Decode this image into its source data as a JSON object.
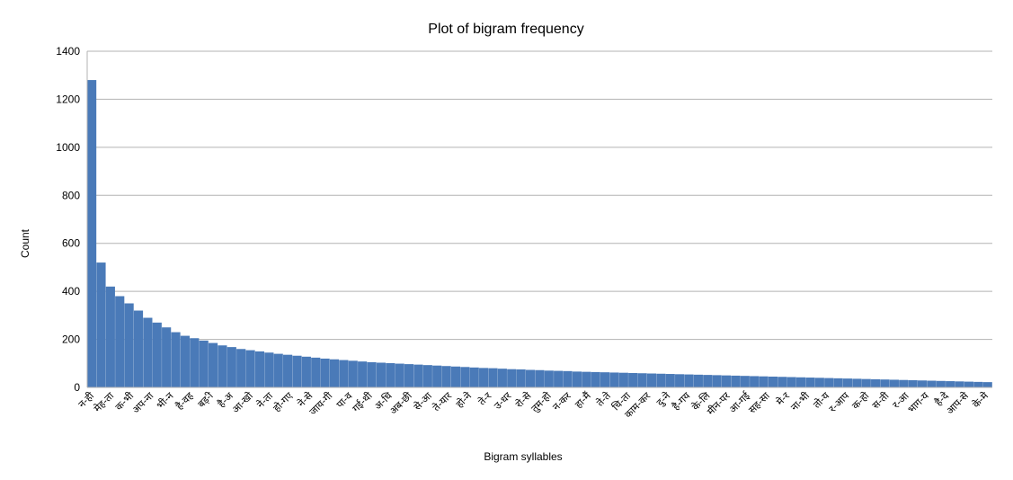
{
  "chart_data": {
    "type": "bar",
    "title": "Plot of bigram frequency",
    "xlabel": "Bigram syllables",
    "ylabel": "Count",
    "ylim": [
      0,
      1400
    ],
    "yticks": [
      0,
      200,
      400,
      600,
      800,
      1000,
      1200,
      1400
    ],
    "grid": true,
    "legend": "none",
    "bar_color": "#4a7ab8",
    "grid_color": "#b3b3b3",
    "categories": [
      "न-ही",
      "मेह-ता",
      "क-भी",
      "अप-ना",
      "भी-न",
      "है-वह",
      "बड़-ी",
      "है-अ",
      "आ-खो",
      "ने-ता",
      "हो-गए",
      "ने-से",
      "जाय-गी",
      "पा-व",
      "गई-थी",
      "अ-धि",
      "अब-छी",
      "से-आ",
      "ते-यार",
      "हो-ने",
      "ते-र",
      "उ-धर",
      "रो-से",
      "तुम-हो",
      "न-कर",
      "हा-मैं",
      "ते-ते",
      "चि-ता",
      "काम-कर",
      "दु-ने",
      "है-गय",
      "के-लि",
      "मीन-पर",
      "आ-गई",
      "सह-सा",
      "मे-र",
      "ना-भी",
      "तो-य",
      "र-आप",
      "क-हो",
      "स-ती",
      "र-आ",
      "भाग-य",
      "है-दे",
      "आप-से",
      "के-मे"
    ],
    "values_by_rank": [
      1280,
      520,
      420,
      380,
      350,
      320,
      290,
      270,
      250,
      230,
      215,
      205,
      195,
      185,
      175,
      168,
      160,
      155,
      150,
      145,
      140,
      136,
      132,
      128,
      124,
      120,
      117,
      114,
      111,
      108,
      105,
      103,
      101,
      99,
      97,
      95,
      93,
      91,
      89,
      87,
      85,
      83,
      81,
      80,
      78,
      76,
      75,
      73,
      72,
      70,
      69,
      68,
      66,
      65,
      64,
      63,
      62,
      61,
      60,
      59,
      58,
      57,
      56,
      55,
      54,
      53,
      52,
      51,
      50,
      49,
      48,
      47,
      46,
      45,
      44,
      43,
      42,
      41,
      40,
      39,
      38,
      37,
      36,
      35,
      34,
      33,
      32,
      31,
      30,
      29,
      28,
      27,
      26,
      25,
      24,
      23,
      22
    ]
  }
}
